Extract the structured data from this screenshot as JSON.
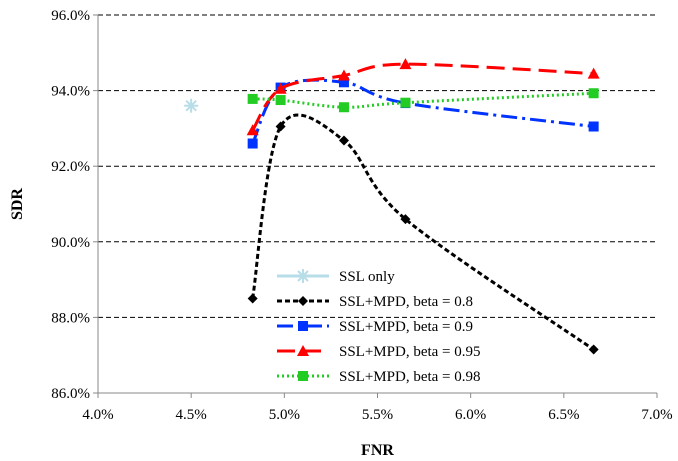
{
  "chart_data": {
    "type": "line",
    "xlabel": "FNR",
    "ylabel": "SDR",
    "xlim": [
      0.04,
      0.07
    ],
    "ylim": [
      0.86,
      0.96
    ],
    "x_ticks": [
      0.04,
      0.045,
      0.05,
      0.055,
      0.06,
      0.065,
      0.07
    ],
    "x_tick_labels": [
      "4.0%",
      "4.5%",
      "5.0%",
      "5.5%",
      "6.0%",
      "6.5%",
      "7.0%"
    ],
    "y_ticks": [
      0.86,
      0.88,
      0.9,
      0.92,
      0.94,
      0.96
    ],
    "y_tick_labels": [
      "86.0%",
      "88.0%",
      "90.0%",
      "92.0%",
      "94.0%",
      "96.0%"
    ],
    "grid": "horizontal dashed",
    "legend_position": "bottom-center",
    "series": [
      {
        "name": "SSL only",
        "color": "#b7dde8",
        "marker": "asterisk",
        "line_style": "solid",
        "points": [
          [
            0.045,
            0.936
          ]
        ]
      },
      {
        "name": "SSL+MPD, beta = 0.8",
        "color": "#000000",
        "marker": "diamond",
        "line_style": "short-dash",
        "points": [
          [
            0.0483,
            0.885
          ],
          [
            0.0498,
            0.9305
          ],
          [
            0.0532,
            0.9268
          ],
          [
            0.0565,
            0.906
          ],
          [
            0.0666,
            0.8715
          ]
        ]
      },
      {
        "name": "SSL+MPD, beta = 0.9",
        "color": "#0033ff",
        "marker": "square",
        "line_style": "dash-dot",
        "points": [
          [
            0.0483,
            0.926
          ],
          [
            0.0498,
            0.9408
          ],
          [
            0.0532,
            0.9422
          ],
          [
            0.0565,
            0.9367
          ],
          [
            0.0666,
            0.9305
          ]
        ]
      },
      {
        "name": "SSL+MPD, beta = 0.95",
        "color": "#ff0000",
        "marker": "triangle",
        "line_style": "long-dash",
        "points": [
          [
            0.0483,
            0.9295
          ],
          [
            0.0498,
            0.9405
          ],
          [
            0.0532,
            0.944
          ],
          [
            0.0565,
            0.947
          ],
          [
            0.0666,
            0.9445
          ]
        ]
      },
      {
        "name": "SSL+MPD, beta = 0.98",
        "color": "#22cc22",
        "marker": "square",
        "line_style": "dotted",
        "points": [
          [
            0.0483,
            0.9378
          ],
          [
            0.0498,
            0.9375
          ],
          [
            0.0532,
            0.9356
          ],
          [
            0.0565,
            0.9368
          ],
          [
            0.0666,
            0.9393
          ]
        ]
      }
    ]
  }
}
